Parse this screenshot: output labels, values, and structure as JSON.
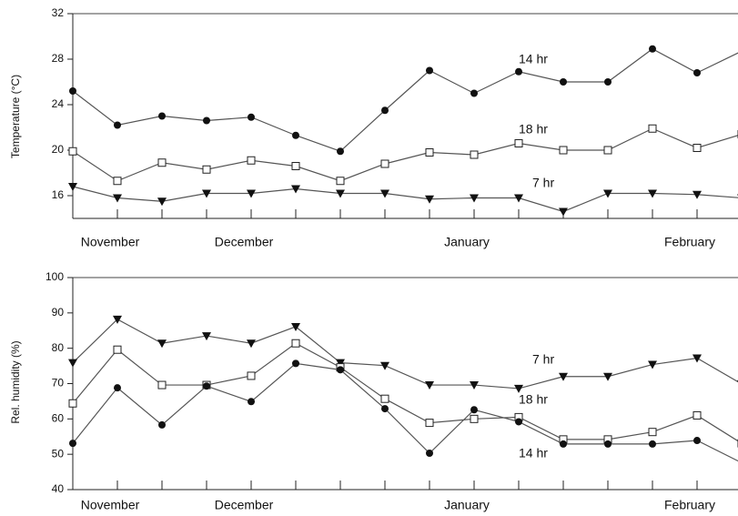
{
  "chart_data": [
    {
      "type": "line",
      "ylabel": "Temperature (°C)",
      "categories": [
        null,
        "November",
        null,
        null,
        "December",
        null,
        null,
        null,
        null,
        "January",
        null,
        null,
        null,
        null,
        "February",
        null
      ],
      "ylim": [
        14,
        32
      ],
      "yticks": [
        16,
        20,
        24,
        28,
        32
      ],
      "series": [
        {
          "name": "14 hr",
          "color": "#555555",
          "marker": "circle",
          "values": [
            25.2,
            22.2,
            23.0,
            22.6,
            22.9,
            21.3,
            19.9,
            23.5,
            27.0,
            25.0,
            26.9,
            26.0,
            26.0,
            28.9,
            26.8,
            28.7
          ]
        },
        {
          "name": "18 hr",
          "color": "#555555",
          "marker": "square-open",
          "values": [
            19.9,
            17.3,
            18.9,
            18.3,
            19.1,
            18.6,
            17.3,
            18.8,
            19.8,
            19.6,
            20.6,
            20.0,
            20.0,
            21.9,
            20.2,
            21.4
          ]
        },
        {
          "name": "7 hr",
          "color": "#555555",
          "marker": "triangle-down",
          "values": [
            16.8,
            15.8,
            15.5,
            16.2,
            16.2,
            16.6,
            16.2,
            16.2,
            15.7,
            15.8,
            15.8,
            14.6,
            16.2,
            16.2,
            16.1,
            15.8
          ]
        }
      ]
    },
    {
      "type": "line",
      "ylabel": "Rel. humidity (%)",
      "categories": [
        null,
        "November",
        null,
        null,
        "December",
        null,
        null,
        null,
        null,
        "January",
        null,
        null,
        null,
        null,
        "February",
        null
      ],
      "ylim": [
        40,
        100
      ],
      "yticks": [
        40,
        50,
        60,
        70,
        80,
        90,
        100
      ],
      "series": [
        {
          "name": "7 hr",
          "color": "#555555",
          "marker": "triangle-down",
          "values": [
            75.9,
            88.2,
            81.4,
            83.5,
            81.4,
            86.1,
            75.9,
            75.1,
            69.6,
            69.6,
            68.6,
            72.0,
            72.0,
            75.4,
            77.2,
            69.9
          ]
        },
        {
          "name": "18 hr",
          "color": "#555555",
          "marker": "square-open",
          "values": [
            64.4,
            79.6,
            69.6,
            69.6,
            72.2,
            81.4,
            74.6,
            65.7,
            58.9,
            60.0,
            60.5,
            54.2,
            54.2,
            56.3,
            61.0,
            53.1
          ]
        },
        {
          "name": "14 hr",
          "color": "#555555",
          "marker": "circle",
          "values": [
            53.1,
            68.8,
            58.3,
            69.3,
            64.9,
            75.7,
            73.9,
            62.9,
            50.3,
            62.6,
            59.2,
            52.9,
            52.9,
            52.9,
            53.9,
            47.6
          ]
        }
      ]
    }
  ]
}
